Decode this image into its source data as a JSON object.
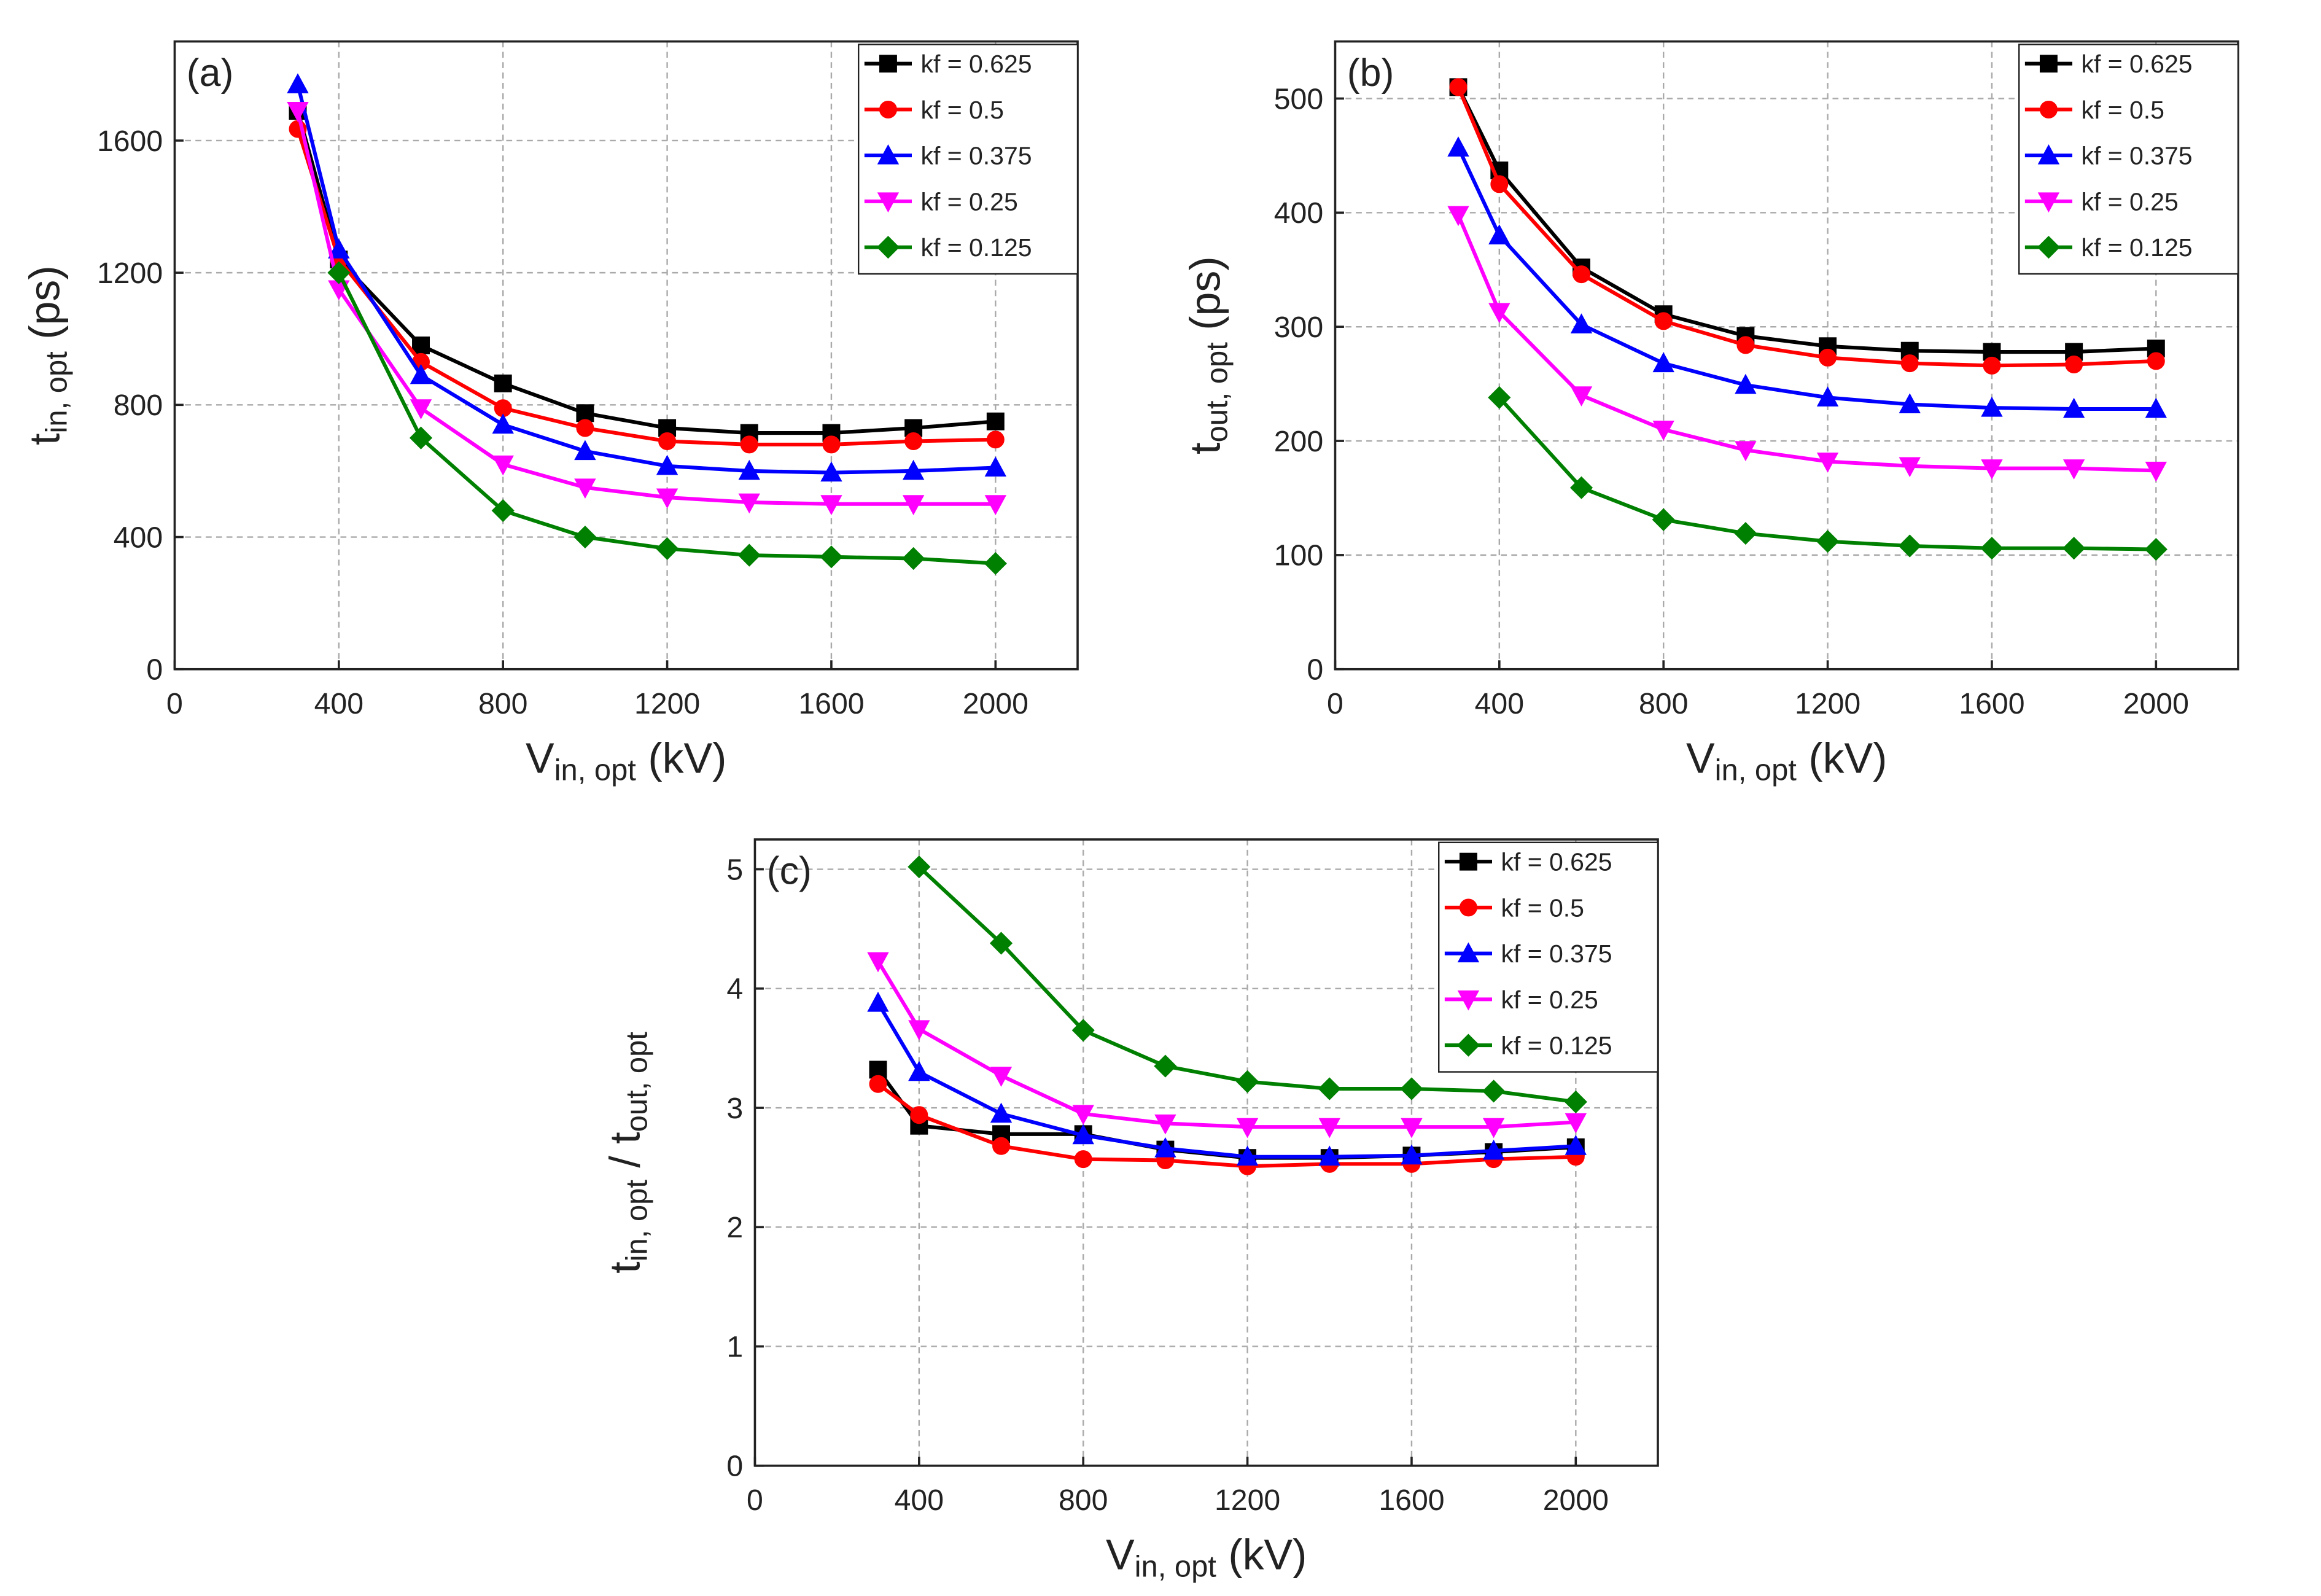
{
  "chart_data": [
    {
      "type": "line",
      "panel_label": "(a)",
      "xlabel": [
        {
          "text": "V"
        },
        {
          "text": "in, opt",
          "sub": true
        },
        {
          "text": " (kV)"
        }
      ],
      "ylabel": [
        {
          "text": "t"
        },
        {
          "text": "in, opt",
          "sub": true
        },
        {
          "text": " (ps)"
        }
      ],
      "x": [
        300,
        400,
        600,
        800,
        1000,
        1200,
        1400,
        1600,
        1800,
        2000
      ],
      "xlim": [
        0,
        2200
      ],
      "xticks": [
        0,
        400,
        800,
        1200,
        1600,
        2000
      ],
      "ylim": [
        0,
        1900
      ],
      "yticks": [
        0,
        400,
        800,
        1200,
        1600
      ],
      "grid": true,
      "legend": "upper right",
      "series": [
        {
          "name": "kf = 0.625",
          "color": "#000000",
          "marker": "square",
          "values": [
            1690,
            1240,
            980,
            865,
            775,
            730,
            715,
            715,
            730,
            750
          ]
        },
        {
          "name": "kf = 0.5",
          "color": "#ff0000",
          "marker": "circle",
          "values": [
            1635,
            1240,
            930,
            790,
            730,
            690,
            680,
            680,
            690,
            695
          ]
        },
        {
          "name": "kf = 0.375",
          "color": "#0000ff",
          "marker": "triangle-up",
          "values": [
            1770,
            1270,
            890,
            740,
            660,
            615,
            600,
            595,
            600,
            610
          ]
        },
        {
          "name": "kf = 0.25",
          "color": "#ff00ff",
          "marker": "triangle-down",
          "values": [
            1690,
            1150,
            790,
            620,
            550,
            520,
            505,
            500,
            500,
            500
          ]
        },
        {
          "name": "kf = 0.125",
          "color": "#008000",
          "marker": "diamond",
          "values": [
            null,
            1200,
            700,
            480,
            400,
            365,
            345,
            340,
            335,
            320
          ]
        }
      ]
    },
    {
      "type": "line",
      "panel_label": "(b)",
      "xlabel": [
        {
          "text": "V"
        },
        {
          "text": "in, opt",
          "sub": true
        },
        {
          "text": " (kV)"
        }
      ],
      "ylabel": [
        {
          "text": "t"
        },
        {
          "text": "out, opt",
          "sub": true
        },
        {
          "text": " (ps)"
        }
      ],
      "x": [
        300,
        400,
        600,
        800,
        1000,
        1200,
        1400,
        1600,
        1800,
        2000
      ],
      "xlim": [
        0,
        2200
      ],
      "xticks": [
        0,
        400,
        800,
        1200,
        1600,
        2000
      ],
      "ylim": [
        0,
        550
      ],
      "yticks": [
        0,
        100,
        200,
        300,
        400,
        500
      ],
      "grid": true,
      "legend": "upper right",
      "series": [
        {
          "name": "kf = 0.625",
          "color": "#000000",
          "marker": "square",
          "values": [
            510,
            437,
            352,
            311,
            292,
            283,
            279,
            278,
            278,
            281
          ]
        },
        {
          "name": "kf = 0.5",
          "color": "#ff0000",
          "marker": "circle",
          "values": [
            510,
            425,
            346,
            305,
            284,
            273,
            268,
            266,
            267,
            270
          ]
        },
        {
          "name": "kf = 0.375",
          "color": "#0000ff",
          "marker": "triangle-up",
          "values": [
            457,
            380,
            302,
            268,
            249,
            238,
            232,
            229,
            228,
            228
          ]
        },
        {
          "name": "kf = 0.25",
          "color": "#ff00ff",
          "marker": "triangle-down",
          "values": [
            398,
            313,
            240,
            210,
            192,
            182,
            178,
            176,
            176,
            174
          ]
        },
        {
          "name": "kf = 0.125",
          "color": "#008000",
          "marker": "diamond",
          "values": [
            null,
            238,
            159,
            131,
            119,
            112,
            108,
            106,
            106,
            105
          ]
        }
      ]
    },
    {
      "type": "line",
      "panel_label": "(c)",
      "xlabel": [
        {
          "text": "V"
        },
        {
          "text": "in, opt",
          "sub": true
        },
        {
          "text": " (kV)"
        }
      ],
      "ylabel": [
        {
          "text": "t"
        },
        {
          "text": "in, opt",
          "sub": true
        },
        {
          "text": " / t"
        },
        {
          "text": "out, opt",
          "sub": true
        }
      ],
      "x": [
        300,
        400,
        600,
        800,
        1000,
        1200,
        1400,
        1600,
        1800,
        2000
      ],
      "xlim": [
        0,
        2200
      ],
      "xticks": [
        0,
        400,
        800,
        1200,
        1600,
        2000
      ],
      "ylim": [
        0,
        5.25
      ],
      "yticks": [
        0,
        1,
        2,
        3,
        4,
        5
      ],
      "grid": true,
      "legend": "upper right",
      "series": [
        {
          "name": "kf = 0.625",
          "color": "#000000",
          "marker": "square",
          "values": [
            3.32,
            2.85,
            2.78,
            2.78,
            2.65,
            2.58,
            2.58,
            2.6,
            2.63,
            2.67
          ]
        },
        {
          "name": "kf = 0.5",
          "color": "#ff0000",
          "marker": "circle",
          "values": [
            3.2,
            2.94,
            2.68,
            2.57,
            2.56,
            2.51,
            2.53,
            2.53,
            2.57,
            2.59
          ]
        },
        {
          "name": "kf = 0.375",
          "color": "#0000ff",
          "marker": "triangle-up",
          "values": [
            3.88,
            3.3,
            2.95,
            2.77,
            2.66,
            2.59,
            2.59,
            2.6,
            2.64,
            2.68
          ]
        },
        {
          "name": "kf = 0.25",
          "color": "#ff00ff",
          "marker": "triangle-down",
          "values": [
            4.23,
            3.66,
            3.27,
            2.95,
            2.87,
            2.84,
            2.84,
            2.84,
            2.84,
            2.88
          ]
        },
        {
          "name": "kf = 0.125",
          "color": "#008000",
          "marker": "diamond",
          "values": [
            null,
            5.02,
            4.38,
            3.65,
            3.35,
            3.22,
            3.16,
            3.16,
            3.14,
            3.05
          ]
        }
      ]
    }
  ]
}
